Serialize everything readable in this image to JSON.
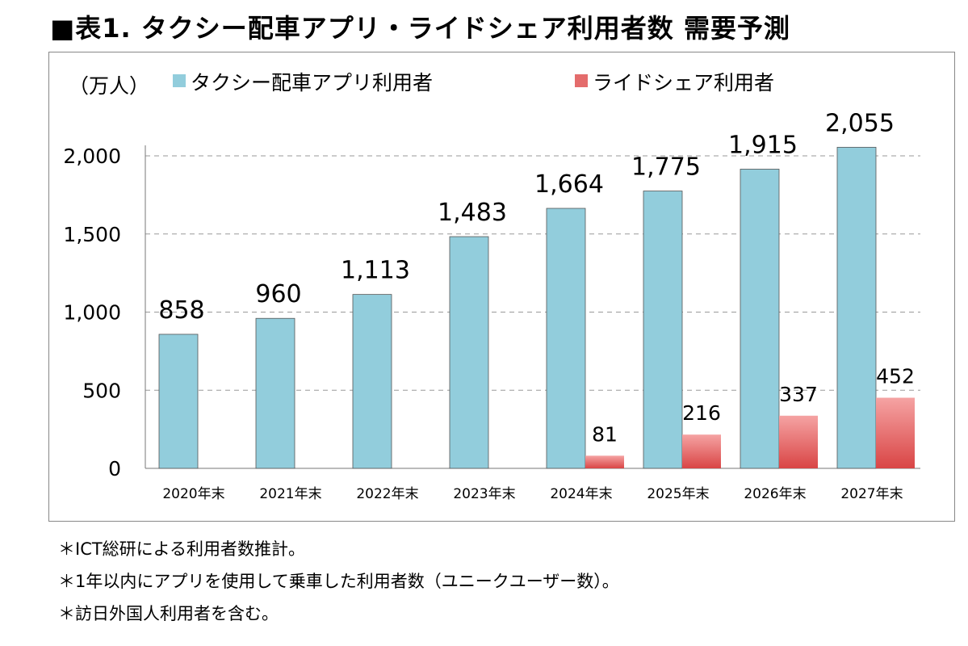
{
  "title": "■表1. タクシー配車アプリ・ライドシェア利用者数 需要予測",
  "chart_data": {
    "type": "bar",
    "unit_label": "（万人）",
    "categories": [
      "2020年末",
      "2021年末",
      "2022年末",
      "2023年末",
      "2024年末",
      "2025年末",
      "2026年末",
      "2027年末"
    ],
    "series": [
      {
        "name": "タクシー配車アプリ利用者",
        "color": "#92cddc",
        "values": [
          858,
          960,
          1113,
          1483,
          1664,
          1775,
          1915,
          2055
        ],
        "labels": [
          "858",
          "960",
          "1,113",
          "1,483",
          "1,664",
          "1,775",
          "1,915",
          "2,055"
        ]
      },
      {
        "name": "ライドシェア利用者",
        "color": "#e46c6c",
        "values": [
          null,
          null,
          null,
          null,
          81,
          216,
          337,
          452
        ],
        "labels": [
          "",
          "",
          "",
          "",
          "81",
          "216",
          "337",
          "452"
        ]
      }
    ],
    "ylim": [
      0,
      2000
    ],
    "yticks": [
      0,
      500,
      1000,
      1500,
      2000
    ],
    "ytick_labels": [
      "0",
      "500",
      "1,000",
      "1,500",
      "2,000"
    ],
    "grid": true,
    "legend_placement": "top"
  },
  "notes": [
    "＊ICT総研による利用者数推計。",
    "＊1年以内にアプリを使用して乗車した利用者数（ユニークユーザー数）。",
    "＊訪日外国人利用者を含む。"
  ]
}
